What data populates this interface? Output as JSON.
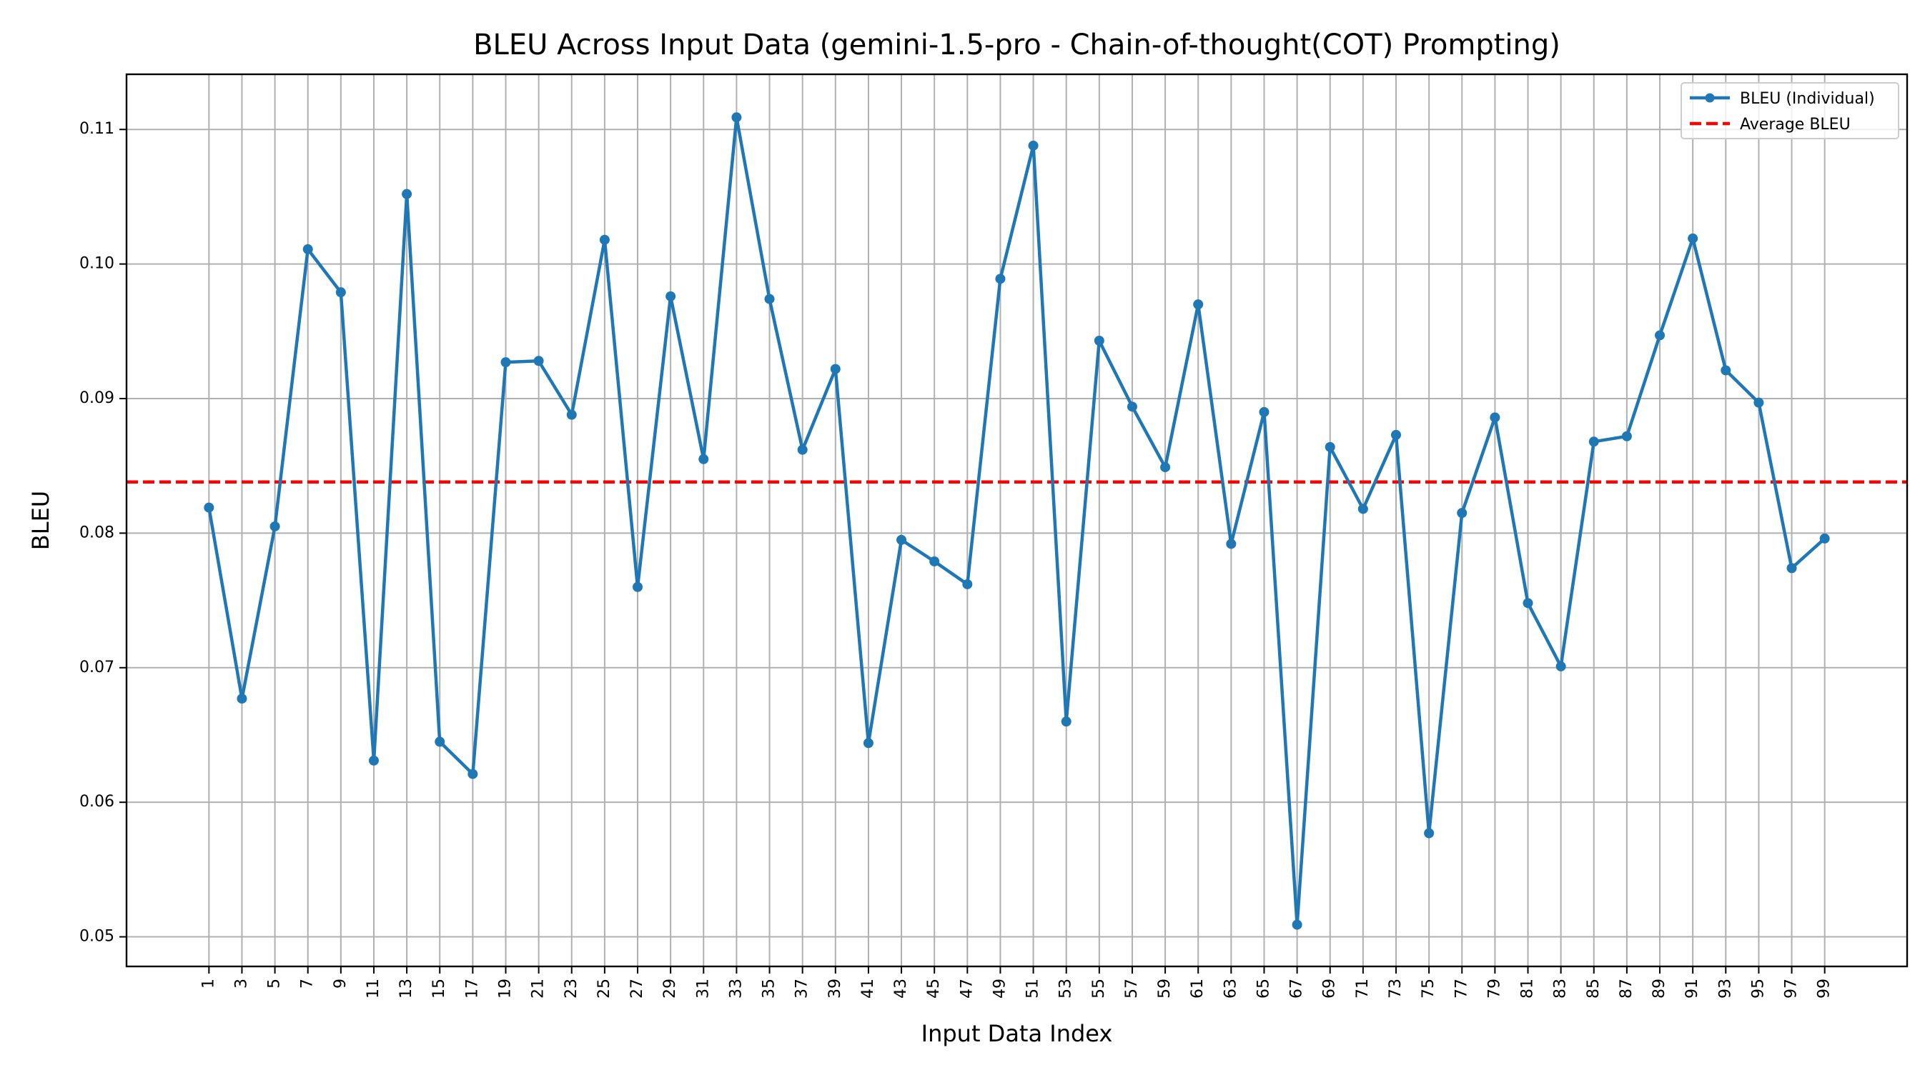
{
  "chart_data": {
    "type": "line",
    "title": "BLEU Across Input Data (gemini-1.5-pro - Chain-of-thought(COT) Prompting)",
    "xlabel": "Input Data Index",
    "ylabel": "BLEU",
    "x": [
      1,
      3,
      5,
      7,
      9,
      11,
      13,
      15,
      17,
      19,
      21,
      23,
      25,
      27,
      29,
      31,
      33,
      35,
      37,
      39,
      41,
      43,
      45,
      47,
      49,
      51,
      53,
      55,
      57,
      59,
      61,
      63,
      65,
      67,
      69,
      71,
      73,
      75,
      77,
      79,
      81,
      83,
      85,
      87,
      89,
      91,
      93,
      95,
      97,
      99
    ],
    "xticks": [
      "1",
      "3",
      "5",
      "7",
      "9",
      "11",
      "13",
      "15",
      "17",
      "19",
      "21",
      "23",
      "25",
      "27",
      "29",
      "31",
      "33",
      "35",
      "37",
      "39",
      "41",
      "43",
      "45",
      "47",
      "49",
      "51",
      "53",
      "55",
      "57",
      "59",
      "61",
      "63",
      "65",
      "67",
      "69",
      "71",
      "73",
      "75",
      "77",
      "79",
      "81",
      "83",
      "85",
      "87",
      "89",
      "91",
      "93",
      "95",
      "97",
      "99"
    ],
    "xlim": [
      -4,
      104
    ],
    "ylim": [
      0.0478,
      0.1141
    ],
    "yticks": [
      "0.05",
      "0.06",
      "0.07",
      "0.08",
      "0.09",
      "0.10",
      "0.11"
    ],
    "ytick_values": [
      0.05,
      0.06,
      0.07,
      0.08,
      0.09,
      0.1,
      0.11
    ],
    "grid": true,
    "legend_position": "top-right",
    "series": [
      {
        "name": "BLEU (Individual)",
        "color": "#1f77b4",
        "style": "solid-with-markers",
        "values": [
          0.0819,
          0.0677,
          0.0805,
          0.1011,
          0.0979,
          0.0631,
          0.1052,
          0.0645,
          0.0621,
          0.0927,
          0.0928,
          0.0888,
          0.1018,
          0.076,
          0.0976,
          0.0855,
          0.1109,
          0.0974,
          0.0862,
          0.0922,
          0.0644,
          0.0795,
          0.0779,
          0.0762,
          0.0989,
          0.1088,
          0.066,
          0.0943,
          0.0894,
          0.0849,
          0.097,
          0.0792,
          0.089,
          0.0509,
          0.0864,
          0.0818,
          0.0873,
          0.0577,
          0.0815,
          0.0886,
          0.0748,
          0.0701,
          0.0868,
          0.0872,
          0.0947,
          0.1019,
          0.0921,
          0.0897,
          0.0774,
          0.0796
        ]
      },
      {
        "name": "Average BLEU",
        "color": "#ff0000",
        "style": "dashed",
        "value": 0.0838
      }
    ]
  }
}
